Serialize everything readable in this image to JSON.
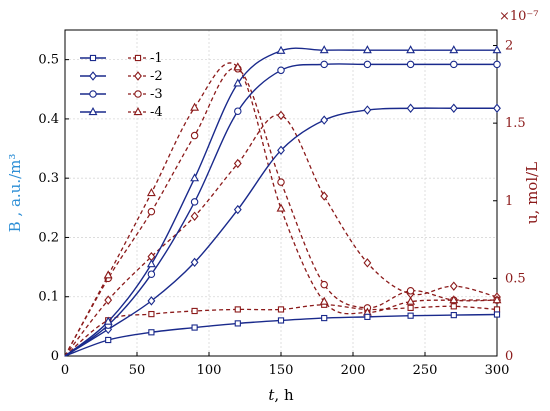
{
  "chart_data": {
    "type": "line",
    "xlabel_italic": "t",
    "xlabel_rest": ", h",
    "ylabel_left": "B , a.u./m³",
    "ylabel_right": "u, mol/L",
    "right_multiplier": "×10⁻⁷",
    "xlim": [
      0,
      300
    ],
    "ylim_left": [
      0,
      0.55
    ],
    "ylim_right": [
      0,
      2.1
    ],
    "x_ticks": [
      0,
      50,
      100,
      150,
      200,
      250,
      300
    ],
    "y_ticks_left": [
      0,
      0.1,
      0.2,
      0.3,
      0.4,
      0.5
    ],
    "y_ticks_left_labels": [
      "0",
      "0.1",
      "0.2",
      "0.3",
      "0.4",
      "0.5"
    ],
    "y_ticks_right": [
      0,
      0.5,
      1,
      1.5,
      2
    ],
    "y_ticks_right_labels": [
      "0",
      "0.5",
      "1",
      "1.5",
      "2"
    ],
    "grid": true,
    "legend_position": "top-left",
    "colors": {
      "left": "#1a2a8c",
      "right": "#8b1a1a",
      "left_label": "#2e8fd6",
      "right_label": "#8b1a1a"
    },
    "series_B": [
      {
        "name": "1",
        "marker": "square",
        "x": [
          0,
          30,
          60,
          90,
          120,
          150,
          180,
          210,
          240,
          270,
          300
        ],
        "y": [
          0,
          0.027,
          0.04,
          0.048,
          0.055,
          0.06,
          0.064,
          0.066,
          0.068,
          0.069,
          0.07
        ]
      },
      {
        "name": "2",
        "marker": "diamond",
        "x": [
          0,
          30,
          60,
          90,
          120,
          150,
          180,
          210,
          240,
          270,
          300
        ],
        "y": [
          0,
          0.045,
          0.093,
          0.158,
          0.247,
          0.347,
          0.398,
          0.415,
          0.418,
          0.418,
          0.418
        ]
      },
      {
        "name": "3",
        "marker": "circle",
        "x": [
          0,
          30,
          60,
          90,
          120,
          150,
          180,
          210,
          240,
          270,
          300
        ],
        "y": [
          0,
          0.052,
          0.138,
          0.26,
          0.413,
          0.482,
          0.492,
          0.492,
          0.492,
          0.492,
          0.492
        ]
      },
      {
        "name": "4",
        "marker": "triangle",
        "x": [
          0,
          30,
          60,
          90,
          120,
          150,
          180,
          210,
          240,
          270,
          300
        ],
        "y": [
          0,
          0.058,
          0.155,
          0.3,
          0.46,
          0.515,
          0.516,
          0.516,
          0.516,
          0.516,
          0.516
        ]
      }
    ],
    "series_u": [
      {
        "name": "1",
        "marker": "square",
        "x": [
          0,
          30,
          60,
          90,
          120,
          150,
          180,
          210,
          240,
          270,
          300
        ],
        "y": [
          0,
          0.23,
          0.27,
          0.29,
          0.3,
          0.3,
          0.33,
          0.3,
          0.31,
          0.32,
          0.3
        ]
      },
      {
        "name": "2",
        "marker": "diamond",
        "x": [
          0,
          30,
          60,
          90,
          120,
          150,
          180,
          210,
          240,
          270,
          300
        ],
        "y": [
          0,
          0.36,
          0.64,
          0.9,
          1.24,
          1.55,
          1.03,
          0.6,
          0.4,
          0.45,
          0.38
        ]
      },
      {
        "name": "3",
        "marker": "circle",
        "x": [
          0,
          30,
          60,
          90,
          120,
          150,
          180,
          210,
          240,
          270,
          300
        ],
        "y": [
          0,
          0.5,
          0.93,
          1.42,
          1.85,
          1.12,
          0.46,
          0.31,
          0.42,
          0.36,
          0.36
        ]
      },
      {
        "name": "4",
        "marker": "triangle",
        "x": [
          0,
          30,
          60,
          90,
          120,
          150,
          180,
          210,
          240,
          270,
          300
        ],
        "y": [
          0,
          0.52,
          1.05,
          1.6,
          1.86,
          0.95,
          0.35,
          0.28,
          0.35,
          0.36,
          0.36
        ]
      }
    ]
  }
}
